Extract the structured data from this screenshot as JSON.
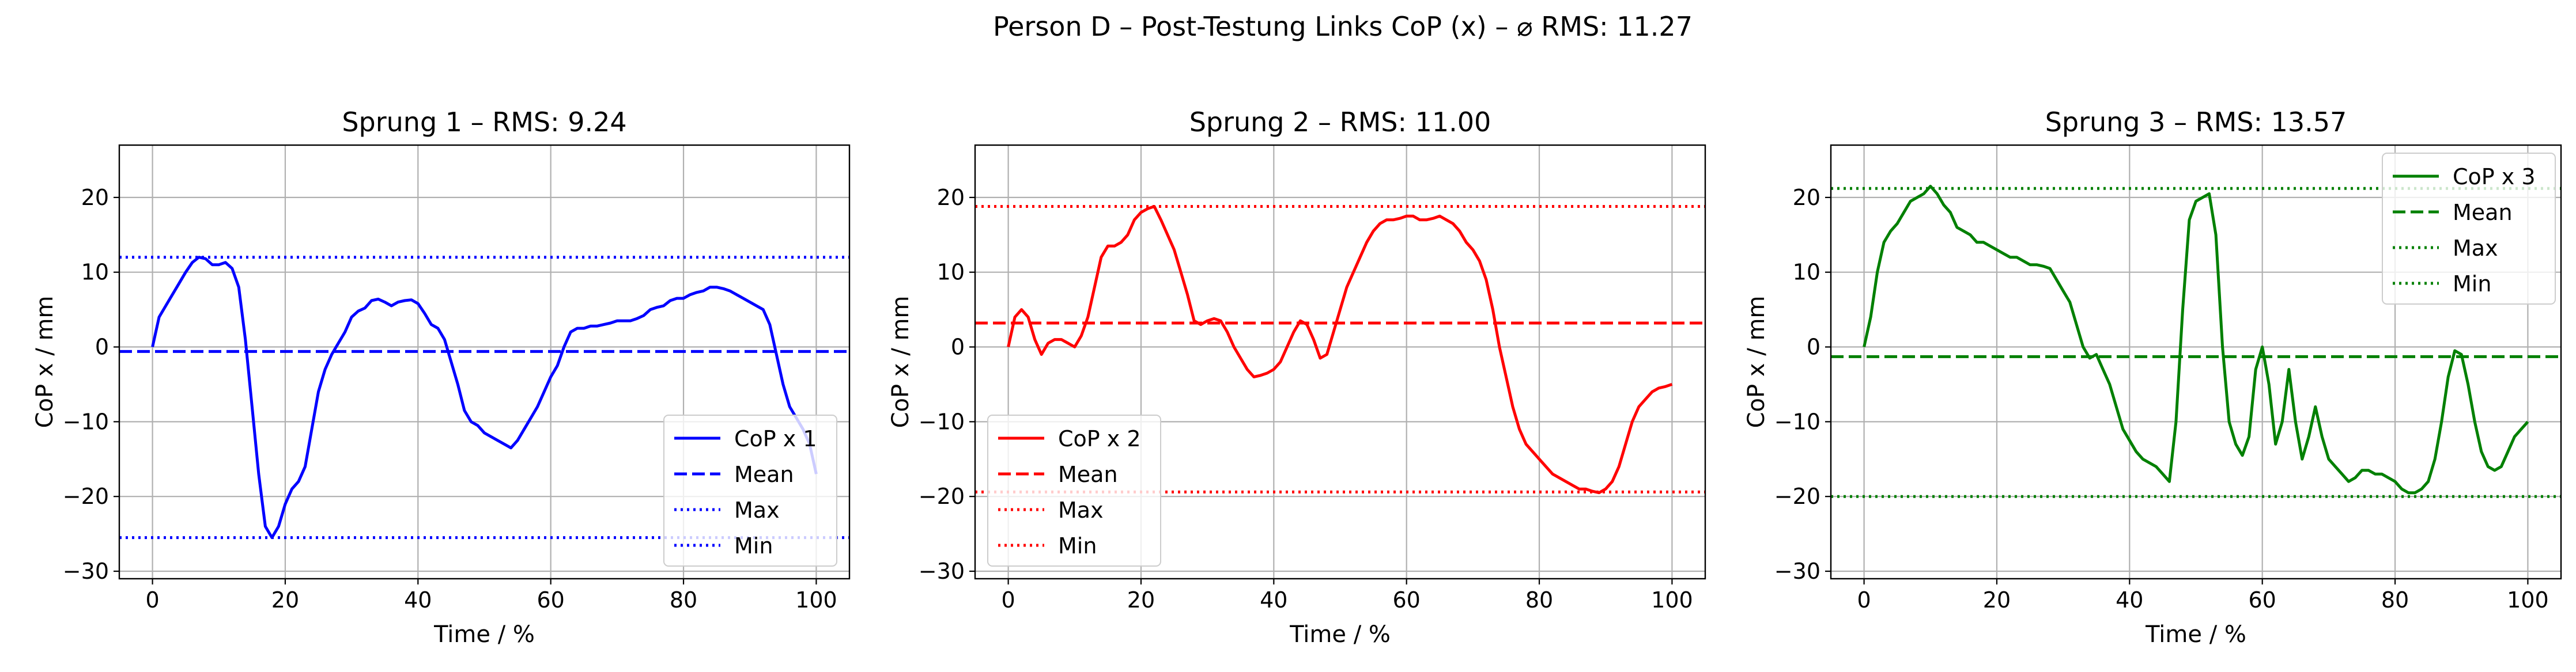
{
  "figure": {
    "suptitle": "Person D – Post-Testung Links CoP (x) – ⌀ RMS: 11.27"
  },
  "chart_data": [
    {
      "type": "line",
      "title": "Sprung 1 – RMS: 9.24",
      "xlabel": "Time / %",
      "ylabel": "CoP x / mm",
      "xlim": [
        -5,
        105
      ],
      "ylim": [
        -31,
        27
      ],
      "xticks": [
        "0",
        "20",
        "40",
        "60",
        "80",
        "100"
      ],
      "yticks": [
        "−30",
        "−20",
        "−10",
        "0",
        "10",
        "20"
      ],
      "grid": true,
      "color": "#0000ff",
      "legend_position": "lower-right",
      "legend": [
        "CoP x 1",
        "Mean",
        "Max",
        "Min"
      ],
      "series": [
        {
          "name": "CoP x 1",
          "style": "solid",
          "x": [
            0,
            1,
            2,
            3,
            4,
            5,
            6,
            7,
            8,
            9,
            10,
            11,
            12,
            13,
            14,
            15,
            16,
            17,
            18,
            19,
            20,
            21,
            22,
            23,
            24,
            25,
            26,
            27,
            28,
            29,
            30,
            31,
            32,
            33,
            34,
            35,
            36,
            37,
            38,
            39,
            40,
            41,
            42,
            43,
            44,
            45,
            46,
            47,
            48,
            49,
            50,
            51,
            52,
            53,
            54,
            55,
            56,
            57,
            58,
            59,
            60,
            61,
            62,
            63,
            64,
            65,
            66,
            67,
            68,
            69,
            70,
            71,
            72,
            73,
            74,
            75,
            76,
            77,
            78,
            79,
            80,
            81,
            82,
            83,
            84,
            85,
            86,
            87,
            88,
            89,
            90,
            91,
            92,
            93,
            94,
            95,
            96,
            97,
            98,
            99,
            100
          ],
          "y": [
            0,
            4,
            5.5,
            7,
            8.5,
            10,
            11.3,
            12,
            11.8,
            11,
            11,
            11.3,
            10.5,
            8,
            1,
            -8,
            -17,
            -24,
            -25.5,
            -24,
            -21,
            -19,
            -18,
            -16,
            -11,
            -6,
            -3,
            -1,
            0.5,
            2,
            4,
            4.8,
            5.2,
            6.2,
            6.4,
            6,
            5.5,
            6,
            6.2,
            6.3,
            5.8,
            4.5,
            3,
            2.5,
            1,
            -2,
            -5,
            -8.5,
            -10,
            -10.5,
            -11.5,
            -12,
            -12.5,
            -13,
            -13.5,
            -12.5,
            -11,
            -9.5,
            -8,
            -6,
            -4,
            -2.5,
            0,
            2,
            2.5,
            2.5,
            2.8,
            2.8,
            3,
            3.2,
            3.5,
            3.5,
            3.5,
            3.8,
            4.2,
            5,
            5.3,
            5.5,
            6.2,
            6.5,
            6.5,
            7,
            7.3,
            7.5,
            8,
            8,
            7.8,
            7.5,
            7,
            6.5,
            6,
            5.5,
            5,
            3,
            -1,
            -5,
            -8,
            -9.5,
            -11,
            -13,
            -17
          ]
        },
        {
          "name": "Mean",
          "style": "dashed",
          "y": -0.6
        },
        {
          "name": "Max",
          "style": "dotted",
          "y": 12
        },
        {
          "name": "Min",
          "style": "dotted",
          "y": -25.5
        }
      ]
    },
    {
      "type": "line",
      "title": "Sprung 2 – RMS: 11.00",
      "xlabel": "Time / %",
      "ylabel": "CoP x / mm",
      "xlim": [
        -5,
        105
      ],
      "ylim": [
        -31,
        27
      ],
      "xticks": [
        "0",
        "20",
        "40",
        "60",
        "80",
        "100"
      ],
      "yticks": [
        "−30",
        "−20",
        "−10",
        "0",
        "10",
        "20"
      ],
      "grid": true,
      "color": "#ff0000",
      "legend_position": "lower-left",
      "legend": [
        "CoP x 2",
        "Mean",
        "Max",
        "Min"
      ],
      "series": [
        {
          "name": "CoP x 2",
          "style": "solid",
          "x": [
            0,
            1,
            2,
            3,
            4,
            5,
            6,
            7,
            8,
            9,
            10,
            11,
            12,
            13,
            14,
            15,
            16,
            17,
            18,
            19,
            20,
            21,
            22,
            23,
            24,
            25,
            26,
            27,
            28,
            29,
            30,
            31,
            32,
            33,
            34,
            35,
            36,
            37,
            38,
            39,
            40,
            41,
            42,
            43,
            44,
            45,
            46,
            47,
            48,
            49,
            50,
            51,
            52,
            53,
            54,
            55,
            56,
            57,
            58,
            59,
            60,
            61,
            62,
            63,
            64,
            65,
            66,
            67,
            68,
            69,
            70,
            71,
            72,
            73,
            74,
            75,
            76,
            77,
            78,
            79,
            80,
            81,
            82,
            83,
            84,
            85,
            86,
            87,
            88,
            89,
            90,
            91,
            92,
            93,
            94,
            95,
            96,
            97,
            98,
            99,
            100
          ],
          "y": [
            0,
            4,
            5,
            4,
            1,
            -1,
            0.5,
            1,
            1,
            0.5,
            0,
            1.5,
            4,
            8,
            12,
            13.5,
            13.5,
            14,
            15,
            17,
            18,
            18.5,
            18.8,
            17,
            15,
            13,
            10,
            7,
            3.5,
            3,
            3.5,
            3.8,
            3.5,
            2,
            0,
            -1.5,
            -3,
            -4,
            -3.8,
            -3.5,
            -3,
            -2,
            0,
            2,
            3.5,
            3,
            1,
            -1.5,
            -1,
            2,
            5,
            8,
            10,
            12,
            14,
            15.5,
            16.5,
            17,
            17,
            17.2,
            17.5,
            17.5,
            17,
            17,
            17.2,
            17.5,
            17,
            16.5,
            15.5,
            14,
            13,
            11.5,
            9,
            5,
            0,
            -4,
            -8,
            -11,
            -13,
            -14,
            -15,
            -16,
            -17,
            -17.5,
            -18,
            -18.5,
            -19,
            -19,
            -19.3,
            -19.5,
            -19,
            -18,
            -16,
            -13,
            -10,
            -8,
            -7,
            -6,
            -5.5,
            -5.3,
            -5
          ]
        },
        {
          "name": "Mean",
          "style": "dashed",
          "y": 3.2
        },
        {
          "name": "Max",
          "style": "dotted",
          "y": 18.8
        },
        {
          "name": "Min",
          "style": "dotted",
          "y": -19.4
        }
      ]
    },
    {
      "type": "line",
      "title": "Sprung 3 – RMS: 13.57",
      "xlabel": "Time / %",
      "ylabel": "CoP x / mm",
      "xlim": [
        -5,
        105
      ],
      "ylim": [
        -31,
        27
      ],
      "xticks": [
        "0",
        "20",
        "40",
        "60",
        "80",
        "100"
      ],
      "yticks": [
        "−30",
        "−20",
        "−10",
        "0",
        "10",
        "20"
      ],
      "grid": true,
      "color": "#008000",
      "legend_position": "upper-right",
      "legend": [
        "CoP x 3",
        "Mean",
        "Max",
        "Min"
      ],
      "series": [
        {
          "name": "CoP x 3",
          "style": "solid",
          "x": [
            0,
            1,
            2,
            3,
            4,
            5,
            6,
            7,
            8,
            9,
            10,
            11,
            12,
            13,
            14,
            15,
            16,
            17,
            18,
            19,
            20,
            21,
            22,
            23,
            24,
            25,
            26,
            27,
            28,
            29,
            30,
            31,
            32,
            33,
            34,
            35,
            36,
            37,
            38,
            39,
            40,
            41,
            42,
            43,
            44,
            45,
            46,
            47,
            48,
            49,
            50,
            51,
            52,
            53,
            54,
            55,
            56,
            57,
            58,
            59,
            60,
            61,
            62,
            63,
            64,
            65,
            66,
            67,
            68,
            69,
            70,
            71,
            72,
            73,
            74,
            75,
            76,
            77,
            78,
            79,
            80,
            81,
            82,
            83,
            84,
            85,
            86,
            87,
            88,
            89,
            90,
            91,
            92,
            93,
            94,
            95,
            96,
            97,
            98,
            99,
            100
          ],
          "y": [
            0,
            4,
            10,
            14,
            15.5,
            16.5,
            18,
            19.5,
            20,
            20.5,
            21.5,
            20.5,
            19,
            18,
            16,
            15.5,
            15,
            14,
            14,
            13.5,
            13,
            12.5,
            12,
            12,
            11.5,
            11,
            11,
            10.8,
            10.5,
            9,
            7.5,
            6,
            3,
            0,
            -1.5,
            -1,
            -3,
            -5,
            -8,
            -11,
            -12.5,
            -14,
            -15,
            -15.5,
            -16,
            -17,
            -18,
            -10,
            5,
            17,
            19.5,
            20,
            20.5,
            15,
            0,
            -10,
            -13,
            -14.5,
            -12,
            -3,
            0,
            -5,
            -13,
            -10,
            -3,
            -10,
            -15,
            -12,
            -8,
            -12,
            -15,
            -16,
            -17,
            -18,
            -17.5,
            -16.5,
            -16.5,
            -17,
            -17,
            -17.5,
            -18,
            -19,
            -19.5,
            -19.5,
            -19,
            -18,
            -15,
            -10,
            -4,
            -0.5,
            -1,
            -5,
            -10,
            -14,
            -16,
            -16.5,
            -16,
            -14,
            -12,
            -11,
            -10
          ]
        },
        {
          "name": "Mean",
          "style": "dashed",
          "y": -1.3
        },
        {
          "name": "Max",
          "style": "dotted",
          "y": 21.2
        },
        {
          "name": "Min",
          "style": "dotted",
          "y": -20
        }
      ]
    }
  ]
}
